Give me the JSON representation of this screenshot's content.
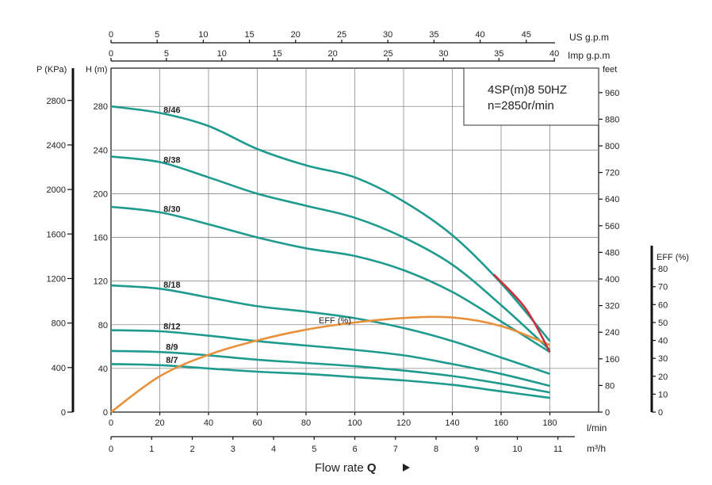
{
  "chart_data": {
    "type": "line",
    "info_box": [
      "4SP(m)8  50HZ",
      "n=2850r/min"
    ],
    "x_axis": {
      "unit": "l/min",
      "ticks": [
        0,
        20,
        40,
        60,
        80,
        100,
        120,
        140,
        160,
        180
      ],
      "range": [
        0,
        200
      ]
    },
    "x_m3h": {
      "unit": "m³/h",
      "ticks": [
        "0",
        "1",
        "2",
        "3",
        "4",
        "5",
        "6",
        "7",
        "8",
        "9",
        "10",
        "11"
      ]
    },
    "x_usgpm": {
      "unit": "US g.p.m",
      "ticks": [
        "0",
        "5",
        "10",
        "15",
        "20",
        "25",
        "30",
        "35",
        "40",
        "45"
      ]
    },
    "x_impgpm": {
      "unit": "Imp g.p.m",
      "ticks": [
        "0",
        "5",
        "10",
        "15",
        "20",
        "25",
        "30",
        "35",
        "40"
      ]
    },
    "flow_label": "Flow rate",
    "flow_symbol": "Q",
    "y_head": {
      "unit": "H (m)",
      "ticks": [
        "0",
        "40",
        "80",
        "120",
        "160",
        "200",
        "240",
        "280"
      ],
      "range": [
        0,
        315
      ]
    },
    "y_pressure": {
      "unit": "P (KPa)",
      "ticks": [
        "0",
        "400",
        "800",
        "1200",
        "1600",
        "2000",
        "2400",
        "2800"
      ]
    },
    "y_feet": {
      "unit": "feet",
      "ticks": [
        "0",
        "80",
        "160",
        "240",
        "320",
        "400",
        "480",
        "560",
        "640",
        "720",
        "800",
        "880",
        "960"
      ]
    },
    "y_eff": {
      "unit": "EFF (%)",
      "ticks": [
        "0",
        "10",
        "20",
        "30",
        "40",
        "50",
        "60",
        "70",
        "80"
      ]
    },
    "series": [
      {
        "name": "8/46",
        "x": [
          0,
          20,
          40,
          60,
          80,
          100,
          120,
          140,
          160,
          180
        ],
        "y": [
          280,
          274,
          262,
          241,
          226,
          215,
          193,
          162,
          118,
          65
        ]
      },
      {
        "name": "8/38",
        "x": [
          0,
          20,
          40,
          60,
          80,
          100,
          120,
          140,
          160,
          180
        ],
        "y": [
          234,
          229,
          215,
          200,
          189,
          178,
          160,
          135,
          98,
          57
        ]
      },
      {
        "name": "8/30",
        "x": [
          0,
          20,
          40,
          60,
          80,
          100,
          120,
          140,
          160,
          180
        ],
        "y": [
          188,
          183,
          172,
          160,
          150,
          143,
          130,
          110,
          83,
          55
        ]
      },
      {
        "name": "8/18",
        "x": [
          0,
          20,
          40,
          60,
          80,
          100,
          120,
          140,
          160,
          180
        ],
        "y": [
          116,
          113,
          105,
          97,
          92,
          86,
          77,
          65,
          50,
          35
        ]
      },
      {
        "name": "8/12",
        "x": [
          0,
          20,
          40,
          60,
          80,
          100,
          120,
          140,
          160,
          180
        ],
        "y": [
          75,
          74,
          70,
          65,
          61,
          57,
          52,
          44,
          35,
          24
        ]
      },
      {
        "name": "8/9",
        "x": [
          0,
          20,
          40,
          60,
          80,
          100,
          120,
          140,
          160,
          180
        ],
        "y": [
          56,
          55,
          52,
          48,
          45,
          42,
          38,
          33,
          26,
          18
        ]
      },
      {
        "name": "8/7",
        "x": [
          0,
          20,
          40,
          60,
          80,
          100,
          120,
          140,
          160,
          180
        ],
        "y": [
          44,
          43,
          40,
          37,
          35,
          32,
          29,
          25,
          19,
          13
        ]
      }
    ],
    "efficiency": {
      "name": "EFF (%)",
      "x": [
        0,
        20,
        40,
        60,
        80,
        100,
        120,
        140,
        160,
        180
      ],
      "eff": [
        0,
        20,
        32,
        40,
        46,
        50,
        52.5,
        52.8,
        48,
        37.5
      ]
    }
  }
}
